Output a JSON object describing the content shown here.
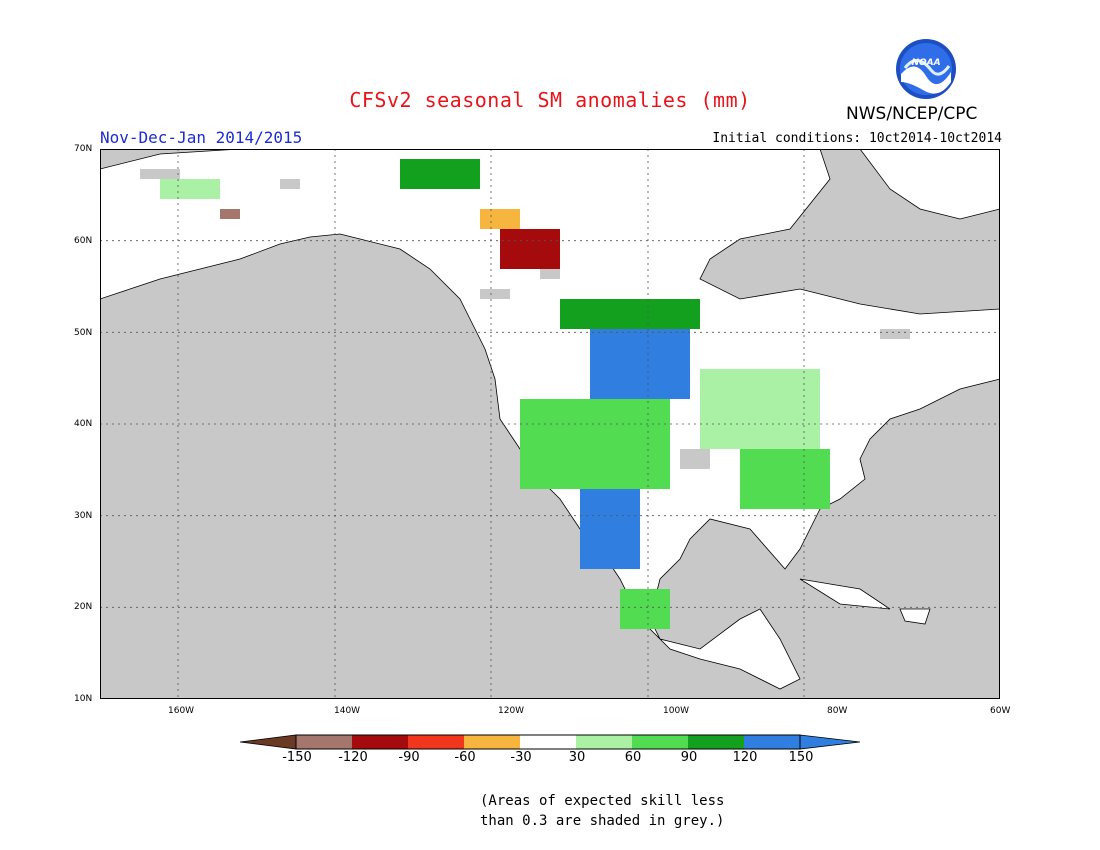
{
  "header": {
    "title": "CFSv2 seasonal SM anomalies (mm)",
    "period": "Nov-Dec-Jan 2014/2015",
    "initial_conditions": "Initial conditions: 10ct2014-10ct2014",
    "agency": "NWS/NCEP/CPC",
    "logo_text": "NOAA"
  },
  "map": {
    "projection": "lat-lon",
    "lon_range": [
      -175,
      -60
    ],
    "lat_range": [
      10,
      70
    ],
    "lat_ticks": [
      "70N",
      "60N",
      "50N",
      "40N",
      "30N",
      "20N",
      "10N"
    ],
    "lon_ticks": [
      "160W",
      "140W",
      "120W",
      "100W",
      "80W",
      "60W"
    ],
    "ocean_color": "#c8c8c8",
    "land_color": "#ffffff",
    "grid": "dotted"
  },
  "legend": {
    "labels": [
      "-150",
      "-120",
      "-90",
      "-60",
      "-30",
      "30",
      "60",
      "90",
      "120",
      "150"
    ],
    "colors": [
      "#6b3a25",
      "#a5766b",
      "#a50b0d",
      "#f0361c",
      "#f5b53f",
      "#ffffff",
      "#aaf0a5",
      "#52dc52",
      "#13a01e",
      "#2f7ee0",
      "#2f7ee0"
    ]
  },
  "note": {
    "line1": "(Areas of expected skill less",
    "line2": "than 0.3 are shaded in grey.)"
  }
}
